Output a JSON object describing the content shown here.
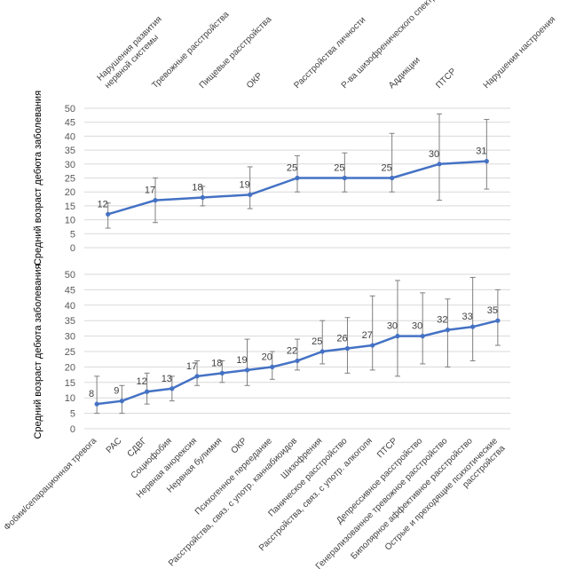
{
  "chart_data": [
    {
      "type": "line",
      "ylabel": "Средний возраст дебюта заболевания",
      "ylim": [
        0,
        50
      ],
      "yticks": [
        0,
        5,
        10,
        15,
        20,
        25,
        30,
        35,
        40,
        45,
        50
      ],
      "grid": true,
      "category_axis_position": "top",
      "categories": [
        "Нарушения развития\nнервной системы",
        "Тревожные расстройства",
        "Пищевые расстройства",
        "ОКР",
        "Расстройства личности",
        "Р-ва шизофренического спектра",
        "Аддикции",
        "ПТСР",
        "Нарушения настроения"
      ],
      "series": [
        {
          "values": [
            12,
            17,
            18,
            19,
            25,
            25,
            25,
            30,
            31
          ],
          "error_low": [
            7,
            9,
            15,
            14,
            20,
            20,
            20,
            17,
            21
          ],
          "error_high": [
            16,
            25,
            22,
            29,
            33,
            34,
            41,
            48,
            46
          ]
        }
      ],
      "data_labels": [
        "12",
        "17",
        "18",
        "19",
        "25",
        "25",
        "25",
        "30",
        "31"
      ],
      "color": "#4472c4"
    },
    {
      "type": "line",
      "ylabel": "Средний возраст дебюта заболевания",
      "ylim": [
        0,
        50
      ],
      "yticks": [
        0,
        5,
        10,
        15,
        20,
        25,
        30,
        35,
        40,
        45,
        50
      ],
      "grid": true,
      "category_axis_position": "bottom",
      "categories": [
        "Фобии/сепарационная тревога",
        "РАС",
        "СДВГ",
        "Социофобия",
        "Нервная анорексия",
        "Нервная булимия",
        "ОКР",
        "Психогенное переедание",
        "Расстройства, связ. с употр. каннабиоидов",
        "Шизофрения",
        "Паническое расстройство",
        "Расстройства, связ. с употр. алкоголя",
        "ПТСР",
        "Депрессивное расстройство",
        "Генерализованное тревожное расстройство",
        "Биполярное аффективное расстройство",
        "Острые и преходящие психотические\nрасстройства"
      ],
      "series": [
        {
          "values": [
            8,
            9,
            12,
            13,
            17,
            18,
            19,
            20,
            22,
            25,
            26,
            27,
            30,
            30,
            32,
            33,
            35
          ],
          "error_low": [
            5,
            5,
            8,
            9,
            14,
            15,
            14,
            16,
            19,
            21,
            18,
            19,
            17,
            21,
            20,
            22,
            27
          ],
          "error_high": [
            17,
            14,
            18,
            17,
            22,
            22,
            29,
            25,
            29,
            35,
            36,
            43,
            48,
            44,
            42,
            49,
            45
          ]
        }
      ],
      "data_labels": [
        "8",
        "9",
        "12",
        "13",
        "17",
        "18",
        "19",
        "20",
        "22",
        "25",
        "26",
        "27",
        "30",
        "30",
        "32",
        "33",
        "35"
      ],
      "color": "#4472c4"
    }
  ]
}
